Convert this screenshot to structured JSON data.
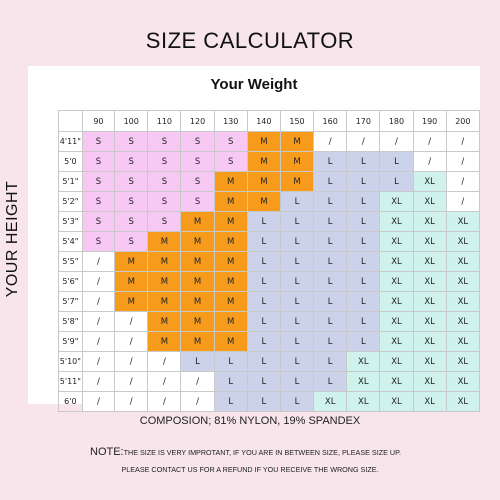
{
  "title": "SIZE CALCULATOR",
  "weight_title": "Your Weight",
  "height_label": "YOUR HEIGHT",
  "weights": [
    "90",
    "100",
    "110",
    "120",
    "130",
    "140",
    "150",
    "160",
    "170",
    "180",
    "190",
    "200"
  ],
  "rows": [
    {
      "height": "4'11\"",
      "cells": [
        "S",
        "S",
        "S",
        "S",
        "S",
        "M",
        "M",
        "/",
        "/",
        "/",
        "/",
        "/"
      ]
    },
    {
      "height": "5'0",
      "cells": [
        "S",
        "S",
        "S",
        "S",
        "S",
        "M",
        "M",
        "L",
        "L",
        "L",
        "/",
        "/"
      ]
    },
    {
      "height": "5'1\"",
      "cells": [
        "S",
        "S",
        "S",
        "S",
        "M",
        "M",
        "M",
        "L",
        "L",
        "L",
        "XL",
        "/"
      ]
    },
    {
      "height": "5'2\"",
      "cells": [
        "S",
        "S",
        "S",
        "S",
        "M",
        "M",
        "L",
        "L",
        "L",
        "XL",
        "XL",
        "/"
      ]
    },
    {
      "height": "5'3\"",
      "cells": [
        "S",
        "S",
        "S",
        "M",
        "M",
        "L",
        "L",
        "L",
        "L",
        "XL",
        "XL",
        "XL"
      ]
    },
    {
      "height": "5'4\"",
      "cells": [
        "S",
        "S",
        "M",
        "M",
        "M",
        "L",
        "L",
        "L",
        "L",
        "XL",
        "XL",
        "XL"
      ]
    },
    {
      "height": "5'5\"",
      "cells": [
        "/",
        "M",
        "M",
        "M",
        "M",
        "L",
        "L",
        "L",
        "L",
        "XL",
        "XL",
        "XL"
      ]
    },
    {
      "height": "5'6\"",
      "cells": [
        "/",
        "M",
        "M",
        "M",
        "M",
        "L",
        "L",
        "L",
        "L",
        "XL",
        "XL",
        "XL"
      ]
    },
    {
      "height": "5'7\"",
      "cells": [
        "/",
        "M",
        "M",
        "M",
        "M",
        "L",
        "L",
        "L",
        "L",
        "XL",
        "XL",
        "XL"
      ]
    },
    {
      "height": "5'8\"",
      "cells": [
        "/",
        "/",
        "M",
        "M",
        "M",
        "L",
        "L",
        "L",
        "L",
        "XL",
        "XL",
        "XL"
      ]
    },
    {
      "height": "5'9\"",
      "cells": [
        "/",
        "/",
        "M",
        "M",
        "M",
        "L",
        "L",
        "L",
        "L",
        "XL",
        "XL",
        "XL"
      ]
    },
    {
      "height": "5'10\"",
      "cells": [
        "/",
        "/",
        "/",
        "L",
        "L",
        "L",
        "L",
        "L",
        "XL",
        "XL",
        "XL",
        "XL"
      ]
    },
    {
      "height": "5'11\"",
      "cells": [
        "/",
        "/",
        "/",
        "/",
        "L",
        "L",
        "L",
        "L",
        "XL",
        "XL",
        "XL",
        "XL"
      ]
    },
    {
      "height": "6'0",
      "cells": [
        "/",
        "/",
        "/",
        "/",
        "L",
        "L",
        "L",
        "XL",
        "XL",
        "XL",
        "XL",
        "XL"
      ]
    }
  ],
  "colors": {
    "S": "#f8c8f4",
    "M": "#f79b1c",
    "L": "#cbd2ea",
    "XL": "#cff3ec",
    "/": "#ffffff"
  },
  "composition": "COMPOSION; 81% NYLON, 19% SPANDEX",
  "note_label": "NOTE:",
  "note_text": "THE SIZE IS VERY IMPROTANT, IF YOU ARE IN BETWEEN SIZE, PLEASE SIZE UP.",
  "contact": "PLEASE CONTACT US FOR A REFUND IF YOU RECEIVE THE WRONG SIZE."
}
